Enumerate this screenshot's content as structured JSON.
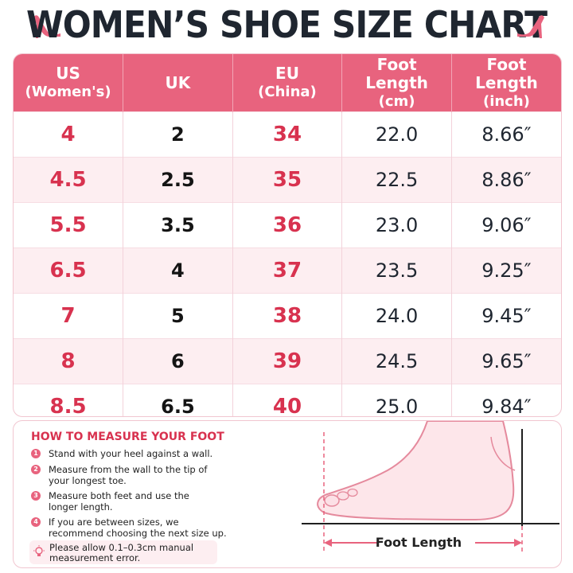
{
  "title": "WOMEN’S SHOE SIZE CHART",
  "colors": {
    "accent": "#e8637e",
    "accent_text": "#d8324f",
    "row_alt": "#fdeef1"
  },
  "icons": {
    "heel_left": "high-heel-icon",
    "heel_right": "high-heel-icon",
    "tip": "lightbulb-icon"
  },
  "table": {
    "headers": [
      {
        "main": "US",
        "sub": "(Women's)"
      },
      {
        "main": "UK",
        "sub": ""
      },
      {
        "main": "EU",
        "sub": "(China)"
      },
      {
        "main": "Foot Length",
        "sub": "(cm)"
      },
      {
        "main": "Foot Length",
        "sub": "(inch)"
      }
    ],
    "rows": [
      {
        "us": "4",
        "uk": "2",
        "eu": "34",
        "cm": "22.0",
        "inch": "8.66″"
      },
      {
        "us": "4.5",
        "uk": "2.5",
        "eu": "35",
        "cm": "22.5",
        "inch": "8.86″"
      },
      {
        "us": "5.5",
        "uk": "3.5",
        "eu": "36",
        "cm": "23.0",
        "inch": "9.06″"
      },
      {
        "us": "6.5",
        "uk": "4",
        "eu": "37",
        "cm": "23.5",
        "inch": "9.25″"
      },
      {
        "us": "7",
        "uk": "5",
        "eu": "38",
        "cm": "24.0",
        "inch": "9.45″"
      },
      {
        "us": "8",
        "uk": "6",
        "eu": "39",
        "cm": "24.5",
        "inch": "9.65″"
      },
      {
        "us": "8.5",
        "uk": "6.5",
        "eu": "40",
        "cm": "25.0",
        "inch": "9.84″"
      }
    ]
  },
  "measure": {
    "title": "HOW TO MEASURE YOUR FOOT",
    "steps": [
      {
        "num": "1",
        "text": "Stand with your heel against a wall."
      },
      {
        "num": "2",
        "text": "Measure from the wall to the tip of your longest toe."
      },
      {
        "num": "3",
        "text": "Measure both feet and use the longer length."
      },
      {
        "num": "4",
        "text": "If you are between sizes, we recommend choosing the next size up."
      }
    ],
    "note": "Please allow 0.1–0.3cm manual measurement error.",
    "foot_label": "Foot Length"
  }
}
